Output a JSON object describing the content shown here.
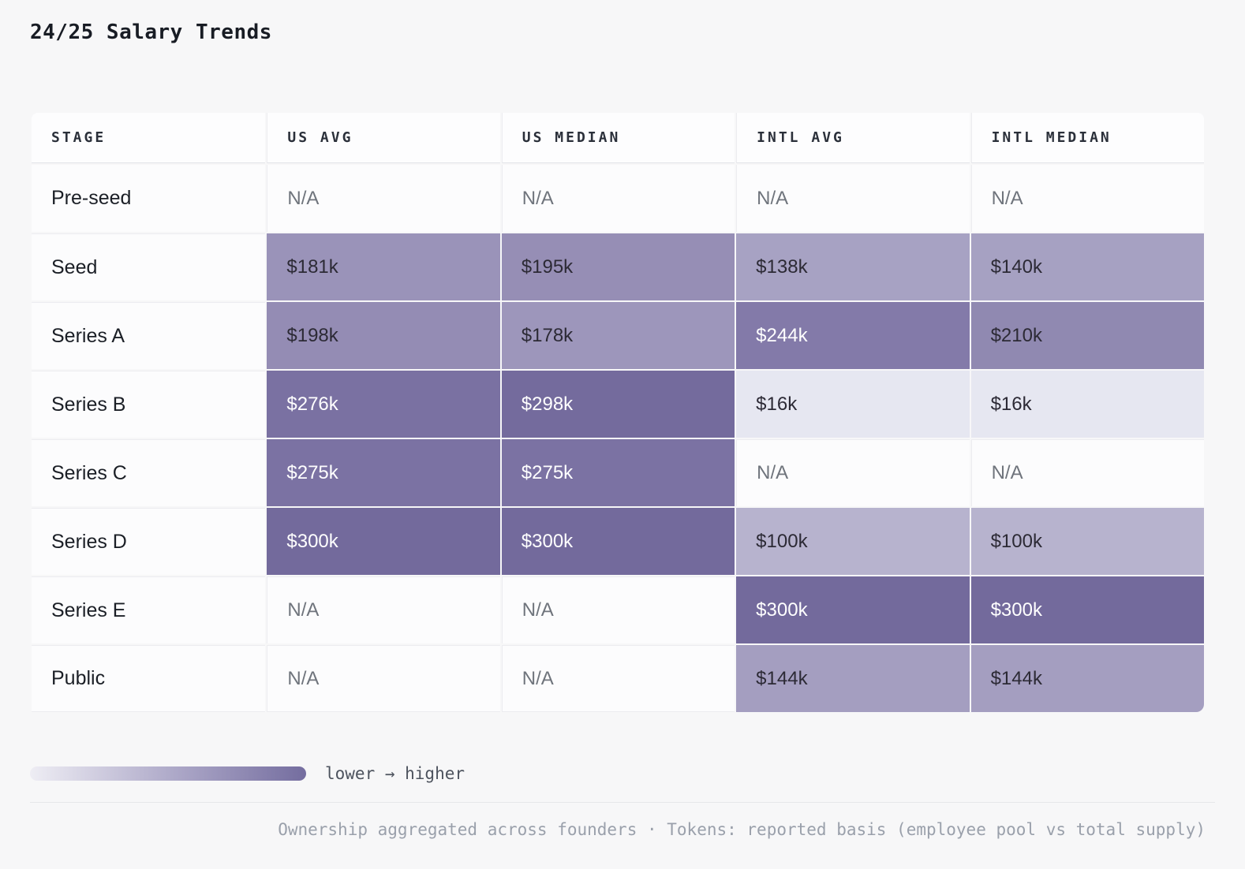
{
  "title": "24/25 Salary Trends",
  "table": {
    "columns": [
      "STAGE",
      "US AVG",
      "US MEDIAN",
      "INTL AVG",
      "INTL MEDIAN"
    ],
    "rows": [
      {
        "stage": "Pre-seed",
        "cells": [
          {
            "text": "N/A",
            "bg": null
          },
          {
            "text": "N/A",
            "bg": null
          },
          {
            "text": "N/A",
            "bg": null
          },
          {
            "text": "N/A",
            "bg": null
          }
        ]
      },
      {
        "stage": "Seed",
        "cells": [
          {
            "text": "$181k",
            "bg": "#9a93b9"
          },
          {
            "text": "$195k",
            "bg": "#968eb5"
          },
          {
            "text": "$138k",
            "bg": "#a7a2c3"
          },
          {
            "text": "$140k",
            "bg": "#a6a1c2"
          }
        ]
      },
      {
        "stage": "Series A",
        "cells": [
          {
            "text": "$198k",
            "bg": "#948cb4"
          },
          {
            "text": "$178k",
            "bg": "#9d96bb"
          },
          {
            "text": "$244k",
            "bg": "#837aa9"
          },
          {
            "text": "$210k",
            "bg": "#9089b1"
          }
        ]
      },
      {
        "stage": "Series B",
        "cells": [
          {
            "text": "$276k",
            "bg": "#7a71a2"
          },
          {
            "text": "$298k",
            "bg": "#746b9d"
          },
          {
            "text": "$16k",
            "bg": "#e6e7f1"
          },
          {
            "text": "$16k",
            "bg": "#e6e7f1"
          }
        ]
      },
      {
        "stage": "Series C",
        "cells": [
          {
            "text": "$275k",
            "bg": "#7b72a3"
          },
          {
            "text": "$275k",
            "bg": "#7b72a3"
          },
          {
            "text": "N/A",
            "bg": null
          },
          {
            "text": "N/A",
            "bg": null
          }
        ]
      },
      {
        "stage": "Series D",
        "cells": [
          {
            "text": "$300k",
            "bg": "#736a9c"
          },
          {
            "text": "$300k",
            "bg": "#736a9c"
          },
          {
            "text": "$100k",
            "bg": "#b7b3ce"
          },
          {
            "text": "$100k",
            "bg": "#b7b3ce"
          }
        ]
      },
      {
        "stage": "Series E",
        "cells": [
          {
            "text": "N/A",
            "bg": null
          },
          {
            "text": "N/A",
            "bg": null
          },
          {
            "text": "$300k",
            "bg": "#736a9c"
          },
          {
            "text": "$300k",
            "bg": "#736a9c"
          }
        ]
      },
      {
        "stage": "Public",
        "cells": [
          {
            "text": "N/A",
            "bg": null
          },
          {
            "text": "N/A",
            "bg": null
          },
          {
            "text": "$144k",
            "bg": "#a49ec0"
          },
          {
            "text": "$144k",
            "bg": "#a49ec0"
          }
        ]
      }
    ]
  },
  "legend": {
    "label": "lower → higher",
    "gradient_low": "#eeedf4",
    "gradient_high": "#746d9f"
  },
  "footer": {
    "note": "Ownership aggregated across founders · Tokens: reported basis (employee pool vs total supply)"
  },
  "chart_data": {
    "type": "heatmap",
    "title": "24/25 Salary Trends",
    "categories": [
      "Pre-seed",
      "Seed",
      "Series A",
      "Series B",
      "Series C",
      "Series D",
      "Series E",
      "Public"
    ],
    "series": [
      {
        "name": "US AVG",
        "values": [
          null,
          181,
          198,
          276,
          275,
          300,
          null,
          null
        ]
      },
      {
        "name": "US MEDIAN",
        "values": [
          null,
          195,
          178,
          298,
          275,
          300,
          null,
          null
        ]
      },
      {
        "name": "INTL AVG",
        "values": [
          null,
          138,
          244,
          16,
          null,
          100,
          300,
          144
        ]
      },
      {
        "name": "INTL MEDIAN",
        "values": [
          null,
          140,
          210,
          16,
          null,
          100,
          300,
          144
        ]
      }
    ],
    "units": "$k (USD thousands)",
    "missing_label": "N/A",
    "legend": "lower → higher",
    "legend_position": "bottom-left",
    "color_scale": {
      "low": "#e6e7f1",
      "high": "#736a9c"
    }
  }
}
